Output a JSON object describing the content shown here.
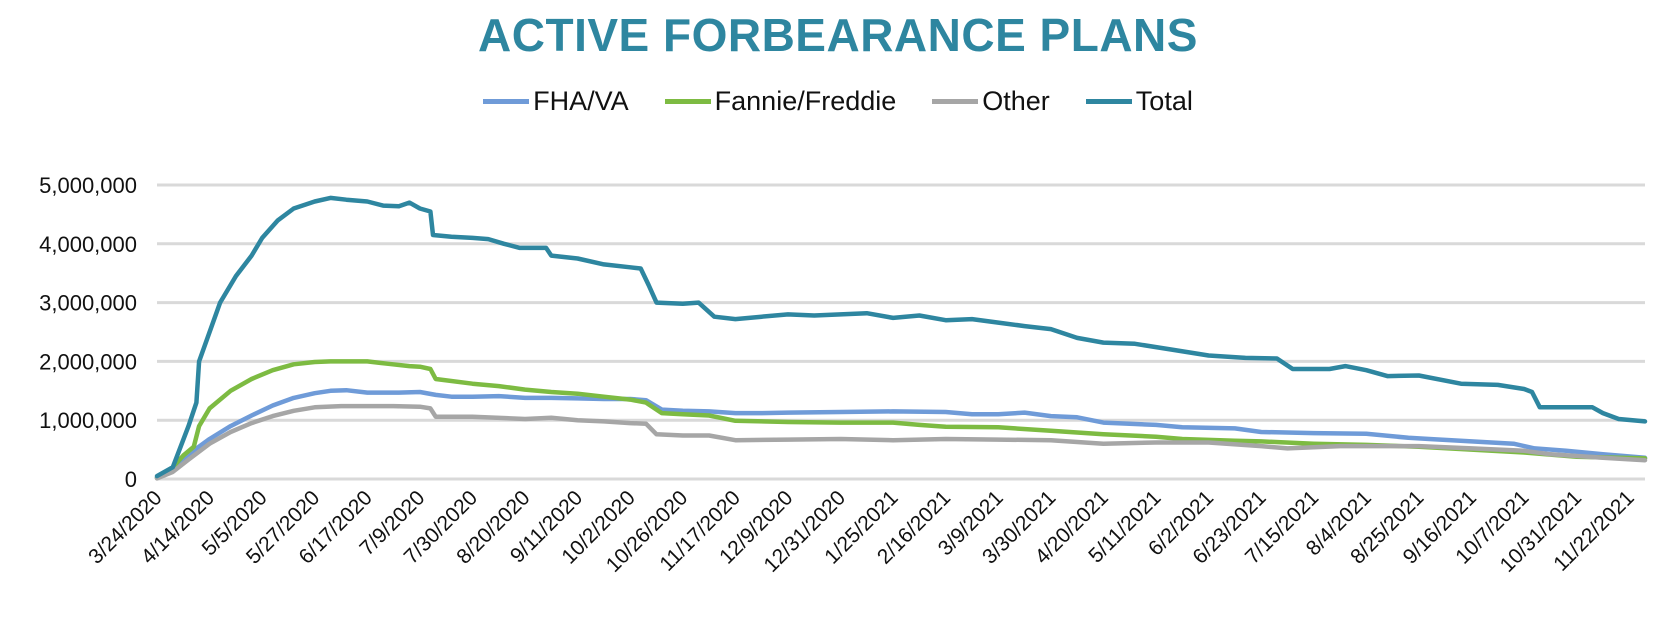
{
  "chart_data": {
    "type": "line",
    "title": "ACTIVE FORBEARANCE PLANS",
    "title_color": "#2E86A0",
    "xlabel": "",
    "ylabel": "",
    "legend_position": "top-center",
    "grid": true,
    "ylim": [
      0,
      5000000
    ],
    "yticks": [
      0,
      1000000,
      2000000,
      3000000,
      4000000,
      5000000
    ],
    "ytick_labels": [
      "0",
      "1,000,000",
      "2,000,000",
      "3,000,000",
      "4,000,000",
      "5,000,000"
    ],
    "xlim": [
      0,
      28.3
    ],
    "categories": [
      "3/24/2020",
      "4/14/2020",
      "5/5/2020",
      "5/27/2020",
      "6/17/2020",
      "7/9/2020",
      "7/30/2020",
      "8/20/2020",
      "9/11/2020",
      "10/2/2020",
      "10/26/2020",
      "11/17/2020",
      "12/9/2020",
      "12/31/2020",
      "1/25/2021",
      "2/16/2021",
      "3/9/2021",
      "3/30/2021",
      "4/20/2021",
      "5/11/2021",
      "6/2/2021",
      "6/23/2021",
      "7/15/2021",
      "8/4/2021",
      "8/25/2021",
      "9/16/2021",
      "10/7/2021",
      "10/31/2021",
      "11/22/2021"
    ],
    "x_note": "x values are positions along the category axis (0 = 3/24/2020, 28 = 11/22/2021)",
    "series": [
      {
        "name": "FHA/VA",
        "color": "#6F9BD8",
        "x": [
          0,
          0.3,
          0.6,
          1.0,
          1.4,
          1.8,
          2.2,
          2.6,
          3.0,
          3.3,
          3.6,
          4.0,
          4.6,
          5.0,
          5.3,
          5.6,
          6.0,
          6.5,
          7.0,
          7.5,
          8.0,
          8.5,
          9.0,
          9.3,
          9.6,
          10.0,
          10.5,
          11.0,
          11.5,
          12.0,
          13.0,
          14.0,
          15.0,
          15.5,
          16.0,
          16.5,
          17.0,
          17.5,
          18.0,
          19.0,
          19.5,
          20.5,
          21.0,
          22.0,
          23.0,
          23.8,
          24.2,
          25.0,
          25.8,
          26.2,
          26.8,
          27.5,
          28.3
        ],
        "values": [
          20000,
          150000,
          420000,
          680000,
          900000,
          1080000,
          1250000,
          1380000,
          1460000,
          1500000,
          1510000,
          1470000,
          1470000,
          1480000,
          1430000,
          1400000,
          1400000,
          1410000,
          1380000,
          1380000,
          1370000,
          1360000,
          1360000,
          1340000,
          1180000,
          1160000,
          1150000,
          1120000,
          1120000,
          1130000,
          1140000,
          1150000,
          1140000,
          1100000,
          1100000,
          1130000,
          1070000,
          1050000,
          960000,
          920000,
          880000,
          860000,
          800000,
          780000,
          770000,
          700000,
          680000,
          640000,
          600000,
          520000,
          480000,
          420000,
          360000
        ]
      },
      {
        "name": "Fannie/Freddie",
        "color": "#7DBB42",
        "x": [
          0,
          0.3,
          0.5,
          0.7,
          0.8,
          1.0,
          1.4,
          1.8,
          2.2,
          2.6,
          3.0,
          3.3,
          4.0,
          4.4,
          4.8,
          5.0,
          5.2,
          5.3,
          6.0,
          6.5,
          7.0,
          7.5,
          8.0,
          8.5,
          9.0,
          9.3,
          9.6,
          10.0,
          10.5,
          11.0,
          12.0,
          13.0,
          14.0,
          14.5,
          15.0,
          16.0,
          17.0,
          18.0,
          19.0,
          19.5,
          20.5,
          21.0,
          22.0,
          23.0,
          24.0,
          25.0,
          26.0,
          27.0,
          28.3
        ],
        "values": [
          20000,
          200000,
          400000,
          550000,
          900000,
          1200000,
          1500000,
          1700000,
          1850000,
          1950000,
          1990000,
          2000000,
          2000000,
          1960000,
          1920000,
          1910000,
          1870000,
          1700000,
          1620000,
          1580000,
          1520000,
          1480000,
          1450000,
          1400000,
          1350000,
          1300000,
          1120000,
          1100000,
          1080000,
          990000,
          970000,
          960000,
          960000,
          920000,
          890000,
          880000,
          820000,
          760000,
          720000,
          680000,
          650000,
          640000,
          600000,
          580000,
          550000,
          500000,
          450000,
          380000,
          350000
        ]
      },
      {
        "name": "Other",
        "color": "#A6A6A6",
        "x": [
          0,
          0.3,
          0.6,
          1.0,
          1.4,
          1.8,
          2.2,
          2.6,
          3.0,
          3.5,
          4.0,
          4.5,
          5.0,
          5.2,
          5.3,
          6.0,
          7.0,
          7.5,
          8.0,
          8.5,
          9.0,
          9.3,
          9.5,
          10.0,
          10.5,
          11.0,
          12.0,
          13.0,
          14.0,
          15.0,
          16.0,
          17.0,
          18.0,
          19.0,
          20.0,
          21.0,
          21.5,
          22.5,
          24.0,
          25.0,
          26.0,
          26.5,
          27.5,
          28.3
        ],
        "values": [
          10000,
          120000,
          330000,
          600000,
          800000,
          950000,
          1070000,
          1160000,
          1220000,
          1240000,
          1240000,
          1240000,
          1230000,
          1200000,
          1060000,
          1060000,
          1020000,
          1040000,
          1000000,
          980000,
          950000,
          940000,
          760000,
          740000,
          740000,
          660000,
          670000,
          680000,
          660000,
          680000,
          670000,
          660000,
          600000,
          620000,
          620000,
          560000,
          520000,
          560000,
          560000,
          520000,
          480000,
          420000,
          360000,
          320000
        ]
      },
      {
        "name": "Total",
        "color": "#2E86A0",
        "x": [
          0,
          0.3,
          0.6,
          0.75,
          0.8,
          1.0,
          1.2,
          1.5,
          1.8,
          2.0,
          2.3,
          2.6,
          3.0,
          3.3,
          3.6,
          4.0,
          4.3,
          4.6,
          4.8,
          5.0,
          5.2,
          5.25,
          5.6,
          6.0,
          6.3,
          6.6,
          6.9,
          7.4,
          7.5,
          8.0,
          8.5,
          9.0,
          9.2,
          9.35,
          9.5,
          10.0,
          10.3,
          10.6,
          11.0,
          11.5,
          12.0,
          12.5,
          13.0,
          13.5,
          14.0,
          14.5,
          15.0,
          15.5,
          16.0,
          16.5,
          17.0,
          17.5,
          18.0,
          18.6,
          19.3,
          20.0,
          20.7,
          21.3,
          21.6,
          22.3,
          22.6,
          23.0,
          23.4,
          24.0,
          24.8,
          25.5,
          26.0,
          26.15,
          26.3,
          27.3,
          27.5,
          27.8,
          28.3
        ],
        "values": [
          50000,
          200000,
          900000,
          1300000,
          2000000,
          2500000,
          3000000,
          3450000,
          3800000,
          4100000,
          4400000,
          4600000,
          4720000,
          4780000,
          4750000,
          4720000,
          4650000,
          4640000,
          4700000,
          4600000,
          4550000,
          4150000,
          4120000,
          4100000,
          4080000,
          4000000,
          3930000,
          3930000,
          3800000,
          3750000,
          3650000,
          3600000,
          3580000,
          3300000,
          3000000,
          2980000,
          3000000,
          2760000,
          2720000,
          2760000,
          2800000,
          2780000,
          2800000,
          2820000,
          2740000,
          2780000,
          2700000,
          2720000,
          2660000,
          2600000,
          2550000,
          2400000,
          2320000,
          2300000,
          2200000,
          2100000,
          2060000,
          2050000,
          1870000,
          1870000,
          1920000,
          1850000,
          1750000,
          1760000,
          1620000,
          1600000,
          1530000,
          1480000,
          1220000,
          1220000,
          1120000,
          1020000,
          980000
        ]
      }
    ]
  }
}
